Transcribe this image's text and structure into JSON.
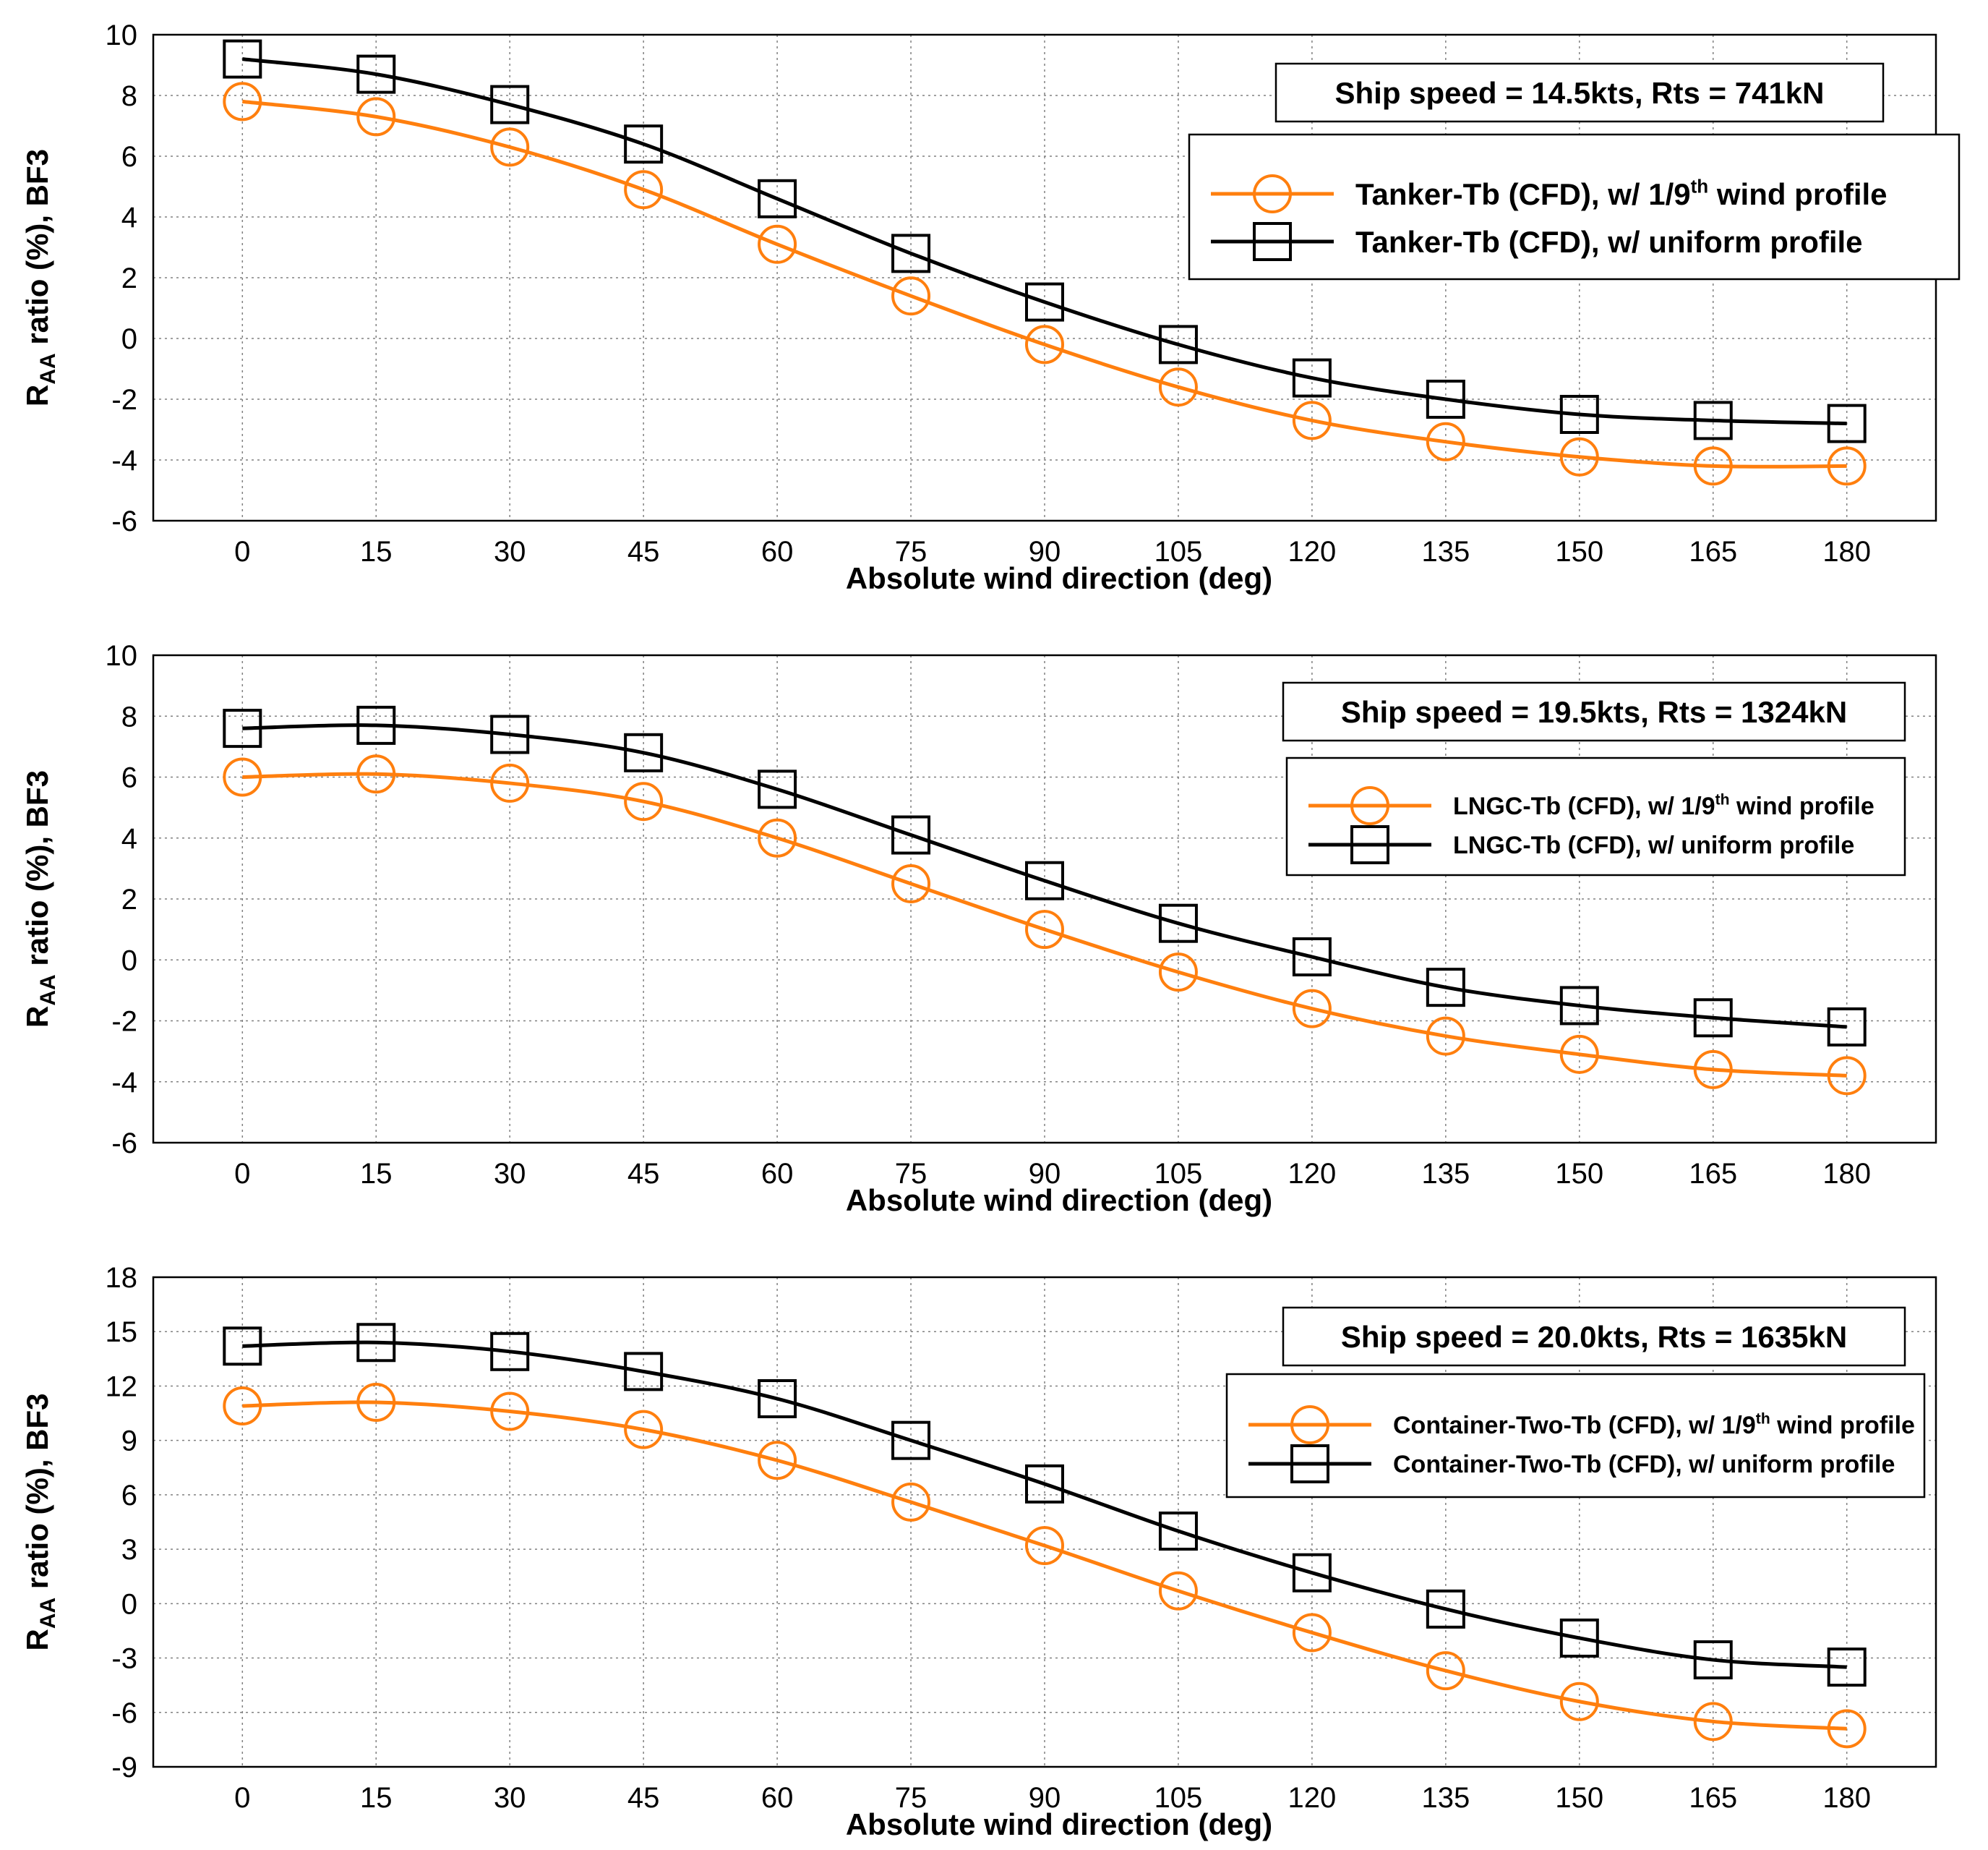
{
  "colors": {
    "series_1_9": "#ff7f0e",
    "series_uniform": "#000000",
    "grid": "#808080",
    "background": "#ffffff"
  },
  "chart_data": [
    {
      "type": "line",
      "info": "Ship speed = 14.5kts, Rts = 741kN",
      "xlabel": "Absolute wind direction (deg)",
      "ylabel": {
        "main": "R",
        "sub": "AA",
        "rest": " ratio (%), BF3"
      },
      "x": [
        0,
        15,
        30,
        45,
        60,
        75,
        90,
        105,
        120,
        135,
        150,
        165,
        180
      ],
      "xticks": [
        "0",
        "15",
        "30",
        "45",
        "60",
        "75",
        "90",
        "105",
        "120",
        "135",
        "150",
        "165",
        "180"
      ],
      "ylim": [
        -6,
        10
      ],
      "yticks": [
        -6,
        -4,
        -2,
        0,
        2,
        4,
        6,
        8,
        10
      ],
      "grid": true,
      "legend_position": "top-right",
      "series": [
        {
          "name_pre": "Tanker-Tb (CFD), w/ 1/9",
          "name_sup": "th",
          "name_post": " wind profile",
          "marker": "circle",
          "color": "#ff7f0e",
          "values": [
            7.8,
            7.3,
            6.3,
            4.9,
            3.1,
            1.4,
            -0.2,
            -1.6,
            -2.7,
            -3.4,
            -3.9,
            -4.2,
            -4.2
          ]
        },
        {
          "name_pre": "Tanker-Tb (CFD), w/ uniform profile",
          "name_sup": "",
          "name_post": "",
          "marker": "square",
          "color": "#000000",
          "values": [
            9.2,
            8.7,
            7.7,
            6.4,
            4.6,
            2.8,
            1.2,
            -0.2,
            -1.3,
            -2.0,
            -2.5,
            -2.7,
            -2.8
          ]
        }
      ]
    },
    {
      "type": "line",
      "info": "Ship speed = 19.5kts, Rts = 1324kN",
      "xlabel": "Absolute wind direction (deg)",
      "ylabel": {
        "main": "R",
        "sub": "AA",
        "rest": " ratio (%), BF3"
      },
      "x": [
        0,
        15,
        30,
        45,
        60,
        75,
        90,
        105,
        120,
        135,
        150,
        165,
        180
      ],
      "xticks": [
        "0",
        "15",
        "30",
        "45",
        "60",
        "75",
        "90",
        "105",
        "120",
        "135",
        "150",
        "165",
        "180"
      ],
      "ylim": [
        -6,
        10
      ],
      "yticks": [
        -6,
        -4,
        -2,
        0,
        2,
        4,
        6,
        8,
        10
      ],
      "grid": true,
      "legend_position": "top-right",
      "series": [
        {
          "name_pre": "LNGC-Tb (CFD), w/ 1/9",
          "name_sup": "th",
          "name_post": " wind profile",
          "marker": "circle",
          "color": "#ff7f0e",
          "values": [
            6.0,
            6.1,
            5.8,
            5.2,
            4.0,
            2.5,
            1.0,
            -0.4,
            -1.6,
            -2.5,
            -3.1,
            -3.6,
            -3.8
          ]
        },
        {
          "name_pre": "LNGC-Tb (CFD), w/ uniform profile",
          "name_sup": "",
          "name_post": "",
          "marker": "square",
          "color": "#000000",
          "values": [
            7.6,
            7.7,
            7.4,
            6.8,
            5.6,
            4.1,
            2.6,
            1.2,
            0.1,
            -0.9,
            -1.5,
            -1.9,
            -2.2
          ]
        }
      ]
    },
    {
      "type": "line",
      "info": "Ship speed = 20.0kts, Rts = 1635kN",
      "xlabel": "Absolute wind direction (deg)",
      "ylabel": {
        "main": "R",
        "sub": "AA",
        "rest": " ratio (%), BF3"
      },
      "x": [
        0,
        15,
        30,
        45,
        60,
        75,
        90,
        105,
        120,
        135,
        150,
        165,
        180
      ],
      "xticks": [
        "0",
        "15",
        "30",
        "45",
        "60",
        "75",
        "90",
        "105",
        "120",
        "135",
        "150",
        "165",
        "180"
      ],
      "ylim": [
        -9,
        18
      ],
      "yticks": [
        -9,
        -6,
        -3,
        0,
        3,
        6,
        9,
        12,
        15,
        18
      ],
      "grid": true,
      "legend_position": "top-right",
      "series": [
        {
          "name_pre": "Container-Two-Tb (CFD), w/ 1/9",
          "name_sup": "th",
          "name_post": " wind profile",
          "marker": "circle",
          "color": "#ff7f0e",
          "values": [
            10.9,
            11.1,
            10.6,
            9.6,
            7.9,
            5.6,
            3.2,
            0.7,
            -1.6,
            -3.7,
            -5.4,
            -6.5,
            -6.9
          ]
        },
        {
          "name_pre": "Container-Two-Tb (CFD), w/ uniform profile",
          "name_sup": "",
          "name_post": "",
          "marker": "square",
          "color": "#000000",
          "values": [
            14.2,
            14.4,
            13.9,
            12.8,
            11.3,
            9.0,
            6.6,
            4.0,
            1.7,
            -0.3,
            -1.9,
            -3.1,
            -3.5
          ]
        }
      ]
    }
  ]
}
